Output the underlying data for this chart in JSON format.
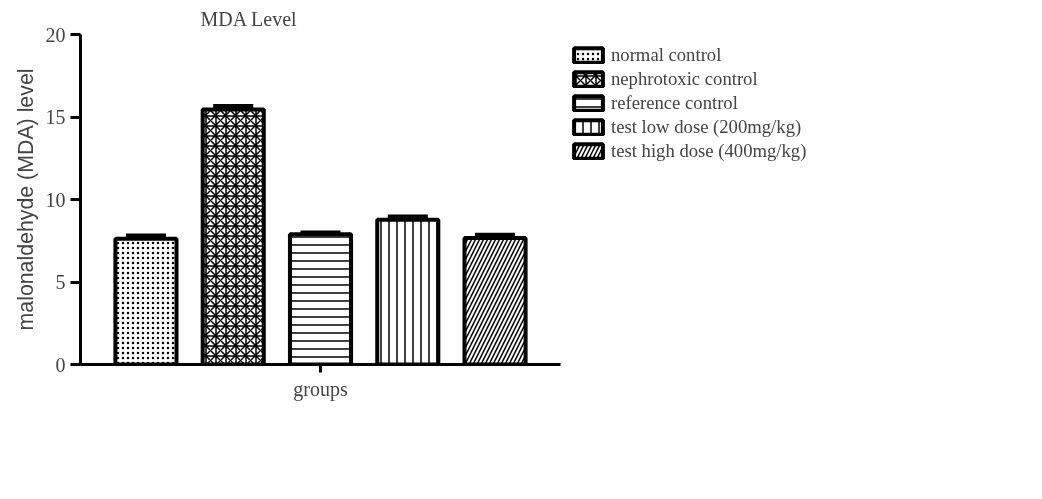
{
  "chart_data": {
    "type": "bar",
    "title": "MDA Level",
    "xlabel": "groups",
    "ylabel": "malonaldehyde (MDA) level",
    "categories": [
      null
    ],
    "series": [
      {
        "name": "normal control",
        "color": "#000000",
        "values": [
          7.62
        ],
        "errors": [
          0.2
        ]
      },
      {
        "name": "nephrotoxic control",
        "color": "#000000",
        "values": [
          15.46
        ],
        "errors": [
          0.2
        ]
      },
      {
        "name": "reference control",
        "color": "#000000",
        "values": [
          7.9
        ],
        "errors": [
          0.1
        ]
      },
      {
        "name": "test low dose (200mg/kg)",
        "color": "#000000",
        "values": [
          8.77
        ],
        "errors": [
          0.2
        ]
      },
      {
        "name": "test high dose (400mg/kg)",
        "color": "#000000",
        "values": [
          7.66
        ],
        "errors": [
          0.2
        ]
      }
    ],
    "ylim": [
      0,
      20
    ],
    "yticks": [
      0,
      5,
      10,
      15,
      20
    ],
    "grid": false,
    "legend": "right"
  }
}
